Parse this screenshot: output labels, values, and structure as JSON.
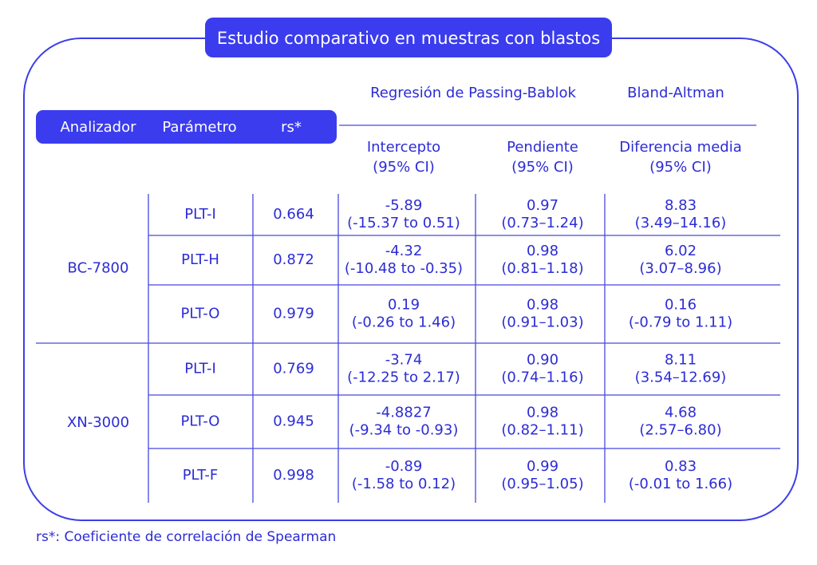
{
  "title": "Estudio comparativo en muestras con blastos",
  "table": {
    "columns": [
      "Analizador",
      "Parámetro",
      "rs*"
    ],
    "group_headers": [
      "Regresión de Passing-Bablok",
      "Bland-Altman"
    ],
    "subcolumns": [
      [
        "Intercepto",
        "(95% CI)"
      ],
      [
        "Pendiente",
        "(95% CI)"
      ],
      [
        "Diferencia media",
        "(95% CI)"
      ]
    ],
    "groups": [
      {
        "analyzer": "BC-7800",
        "rows": [
          [
            "PLT-I",
            "0.664",
            "-5.89",
            "(-15.37 to 0.51)",
            "0.97",
            "(0.73–1.24)",
            "8.83",
            "(3.49–14.16)"
          ],
          [
            "PLT-H",
            "0.872",
            "-4.32",
            "(-10.48 to -0.35)",
            "0.98",
            "(0.81–1.18)",
            "6.02",
            "(3.07–8.96)"
          ],
          [
            "PLT-O",
            "0.979",
            "0.19",
            "(-0.26 to 1.46)",
            "0.98",
            "(0.91–1.03)",
            "0.16",
            "(-0.79 to 1.11)"
          ]
        ]
      },
      {
        "analyzer": "XN-3000",
        "rows": [
          [
            "PLT-I",
            "0.769",
            "-3.74",
            "(-12.25 to 2.17)",
            "0.90",
            "(0.74–1.16)",
            "8.11",
            "(3.54–12.69)"
          ],
          [
            "PLT-O",
            "0.945",
            "-4.8827",
            "(-9.34 to -0.93)",
            "0.98",
            "(0.82–1.11)",
            "4.68",
            "(2.57–6.80)"
          ],
          [
            "PLT-F",
            "0.998",
            "-0.89",
            "(-1.58 to 0.12)",
            "0.99",
            "(0.95–1.05)",
            "0.83",
            "(-0.01 to 1.66)"
          ]
        ]
      }
    ]
  },
  "footnote": "rs*: Coeficiente de correlación de Spearman"
}
